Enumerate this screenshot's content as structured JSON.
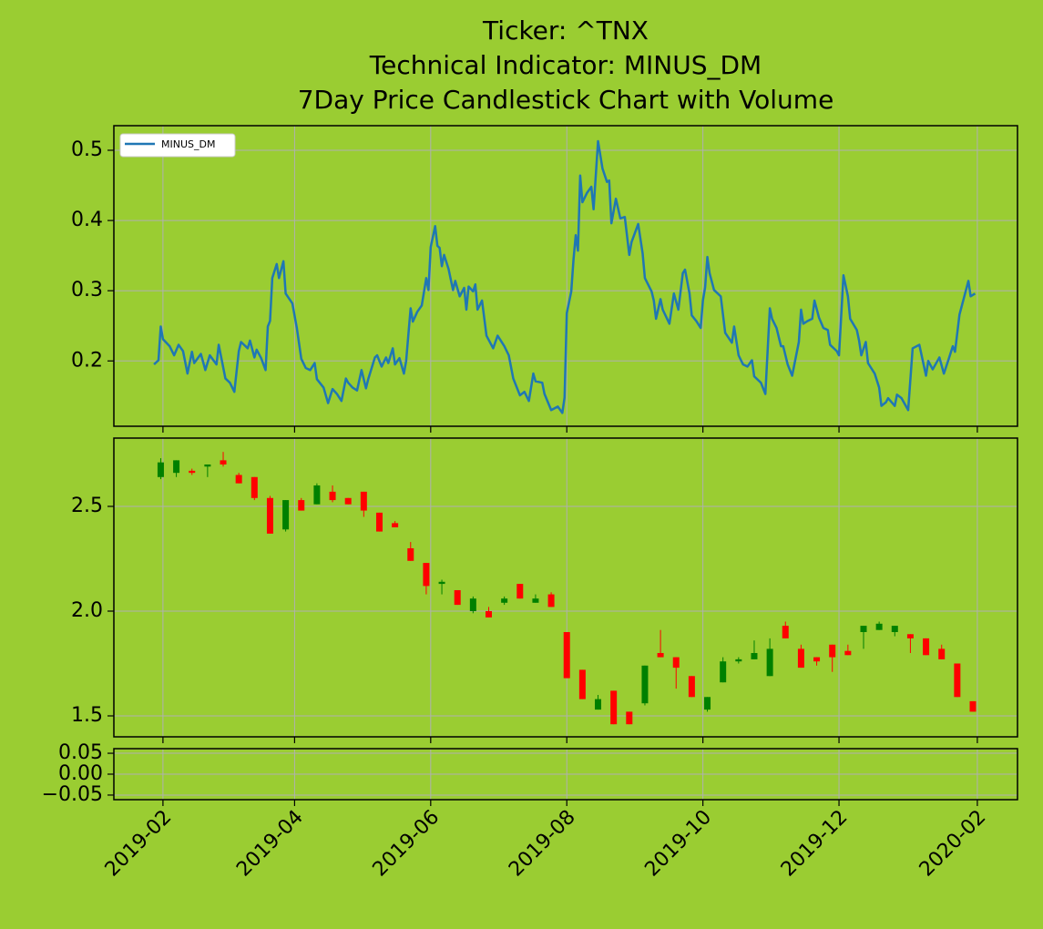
{
  "chart_data": [
    {
      "type": "line",
      "title": [
        "Ticker: ^TNX",
        "Technical Indicator: MINUS_DM",
        "7Day Price Candlestick Chart with Volume"
      ],
      "series": [
        {
          "name": "MINUS_DM",
          "color": "#1f77b4",
          "x": [
            "2019-01-28",
            "2019-01-30",
            "2019-01-31",
            "2019-02-01",
            "2019-02-04",
            "2019-02-06",
            "2019-02-08",
            "2019-02-10",
            "2019-02-12",
            "2019-02-14",
            "2019-02-15",
            "2019-02-18",
            "2019-02-20",
            "2019-02-22",
            "2019-02-25",
            "2019-02-26",
            "2019-03-01",
            "2019-03-03",
            "2019-03-05",
            "2019-03-07",
            "2019-03-08",
            "2019-03-11",
            "2019-03-12",
            "2019-03-14",
            "2019-03-15",
            "2019-03-17",
            "2019-03-19",
            "2019-03-20",
            "2019-03-21",
            "2019-03-22",
            "2019-03-24",
            "2019-03-25",
            "2019-03-27",
            "2019-03-28",
            "2019-03-31",
            "2019-04-02",
            "2019-04-04",
            "2019-04-06",
            "2019-04-08",
            "2019-04-10",
            "2019-04-11",
            "2019-04-14",
            "2019-04-16",
            "2019-04-18",
            "2019-04-20",
            "2019-04-22",
            "2019-04-24",
            "2019-04-25",
            "2019-04-27",
            "2019-04-29",
            "2019-05-01",
            "2019-05-03",
            "2019-05-04",
            "2019-05-07",
            "2019-05-08",
            "2019-05-10",
            "2019-05-12",
            "2019-05-13",
            "2019-05-15",
            "2019-05-16",
            "2019-05-18",
            "2019-05-20",
            "2019-05-21",
            "2019-05-23",
            "2019-05-24",
            "2019-05-26",
            "2019-05-28",
            "2019-05-30",
            "2019-05-31",
            "2019-06-01",
            "2019-06-02",
            "2019-06-03",
            "2019-06-04",
            "2019-06-05",
            "2019-06-06",
            "2019-06-07",
            "2019-06-09",
            "2019-06-11",
            "2019-06-12",
            "2019-06-14",
            "2019-06-16",
            "2019-06-17",
            "2019-06-18",
            "2019-06-20",
            "2019-06-21",
            "2019-06-22",
            "2019-06-24",
            "2019-06-26",
            "2019-06-29",
            "2019-07-01",
            "2019-07-04",
            "2019-07-06",
            "2019-07-08",
            "2019-07-11",
            "2019-07-13",
            "2019-07-15",
            "2019-07-17",
            "2019-07-18",
            "2019-07-21",
            "2019-07-22",
            "2019-07-25",
            "2019-07-28",
            "2019-07-30",
            "2019-07-31",
            "2019-08-01",
            "2019-08-03",
            "2019-08-04",
            "2019-08-05",
            "2019-08-06",
            "2019-08-07",
            "2019-08-08",
            "2019-08-10",
            "2019-08-12",
            "2019-08-13",
            "2019-08-15",
            "2019-08-17",
            "2019-08-19",
            "2019-08-20",
            "2019-08-21",
            "2019-08-23",
            "2019-08-25",
            "2019-08-27",
            "2019-08-29",
            "2019-08-30",
            "2019-09-02",
            "2019-09-04",
            "2019-09-05",
            "2019-09-08",
            "2019-09-09",
            "2019-09-10",
            "2019-09-12",
            "2019-09-13",
            "2019-09-16",
            "2019-09-18",
            "2019-09-20",
            "2019-09-22",
            "2019-09-23",
            "2019-09-25",
            "2019-09-26",
            "2019-09-28",
            "2019-09-30",
            "2019-10-01",
            "2019-10-02",
            "2019-10-03",
            "2019-10-04",
            "2019-10-06",
            "2019-10-09",
            "2019-10-11",
            "2019-10-14",
            "2019-10-15",
            "2019-10-17",
            "2019-10-19",
            "2019-10-21",
            "2019-10-23",
            "2019-10-24",
            "2019-10-27",
            "2019-10-29",
            "2019-10-31",
            "2019-11-01",
            "2019-11-03",
            "2019-11-05",
            "2019-11-06",
            "2019-11-08",
            "2019-11-10",
            "2019-11-13",
            "2019-11-14",
            "2019-11-15",
            "2019-11-17",
            "2019-11-19",
            "2019-11-20",
            "2019-11-22",
            "2019-11-24",
            "2019-11-26",
            "2019-11-27",
            "2019-11-30",
            "2019-12-01",
            "2019-12-03",
            "2019-12-05",
            "2019-12-06",
            "2019-12-09",
            "2019-12-10",
            "2019-12-11",
            "2019-12-13",
            "2019-12-14",
            "2019-12-17",
            "2019-12-19",
            "2019-12-20",
            "2019-12-22",
            "2019-12-23",
            "2019-12-26",
            "2019-12-27",
            "2019-12-29",
            "2020-01-01",
            "2020-01-03",
            "2020-01-06",
            "2020-01-09",
            "2020-01-10",
            "2020-01-12",
            "2020-01-15",
            "2020-01-17",
            "2020-01-19",
            "2020-01-21",
            "2020-01-22",
            "2020-01-24",
            "2020-01-28",
            "2020-01-29",
            "2020-01-31"
          ],
          "values": [
            0.195,
            0.201,
            0.249,
            0.231,
            0.221,
            0.208,
            0.223,
            0.214,
            0.182,
            0.213,
            0.197,
            0.21,
            0.187,
            0.208,
            0.195,
            0.223,
            0.175,
            0.169,
            0.156,
            0.214,
            0.227,
            0.218,
            0.229,
            0.205,
            0.216,
            0.204,
            0.187,
            0.249,
            0.257,
            0.318,
            0.338,
            0.318,
            0.342,
            0.296,
            0.282,
            0.247,
            0.203,
            0.19,
            0.187,
            0.197,
            0.174,
            0.162,
            0.14,
            0.16,
            0.153,
            0.143,
            0.175,
            0.169,
            0.162,
            0.158,
            0.187,
            0.161,
            0.174,
            0.205,
            0.208,
            0.192,
            0.205,
            0.197,
            0.218,
            0.195,
            0.204,
            0.182,
            0.2,
            0.275,
            0.256,
            0.27,
            0.279,
            0.318,
            0.301,
            0.362,
            0.377,
            0.392,
            0.364,
            0.361,
            0.335,
            0.351,
            0.331,
            0.301,
            0.314,
            0.292,
            0.304,
            0.273,
            0.306,
            0.299,
            0.309,
            0.273,
            0.286,
            0.236,
            0.218,
            0.236,
            0.221,
            0.208,
            0.175,
            0.151,
            0.156,
            0.143,
            0.182,
            0.171,
            0.169,
            0.153,
            0.13,
            0.135,
            0.126,
            0.148,
            0.268,
            0.299,
            0.344,
            0.379,
            0.357,
            0.464,
            0.426,
            0.439,
            0.448,
            0.416,
            0.513,
            0.474,
            0.455,
            0.457,
            0.396,
            0.431,
            0.403,
            0.405,
            0.351,
            0.369,
            0.395,
            0.353,
            0.318,
            0.299,
            0.286,
            0.26,
            0.288,
            0.273,
            0.253,
            0.296,
            0.273,
            0.325,
            0.33,
            0.296,
            0.265,
            0.257,
            0.247,
            0.286,
            0.305,
            0.348,
            0.325,
            0.301,
            0.292,
            0.24,
            0.226,
            0.249,
            0.208,
            0.195,
            0.192,
            0.201,
            0.178,
            0.169,
            0.153,
            0.275,
            0.26,
            0.247,
            0.221,
            0.221,
            0.195,
            0.179,
            0.227,
            0.273,
            0.253,
            0.257,
            0.26,
            0.286,
            0.262,
            0.247,
            0.244,
            0.223,
            0.214,
            0.208,
            0.322,
            0.292,
            0.26,
            0.244,
            0.229,
            0.208,
            0.227,
            0.197,
            0.182,
            0.162,
            0.136,
            0.141,
            0.147,
            0.136,
            0.152,
            0.147,
            0.13,
            0.218,
            0.223,
            0.179,
            0.2,
            0.188,
            0.205,
            0.182,
            0.201,
            0.221,
            0.213,
            0.266,
            0.314,
            0.292,
            0.296
          ]
        }
      ],
      "ylim": [
        0.107,
        0.535
      ],
      "yticks": [
        0.2,
        0.3,
        0.4,
        0.5
      ],
      "grid": true,
      "legend": "upper left"
    },
    {
      "type": "candlestick",
      "up_color": "#008000",
      "down_color": "#ff0000",
      "x": [
        "2019-01-31",
        "2019-02-07",
        "2019-02-14",
        "2019-02-21",
        "2019-02-28",
        "2019-03-07",
        "2019-03-14",
        "2019-03-21",
        "2019-03-28",
        "2019-04-04",
        "2019-04-11",
        "2019-04-18",
        "2019-04-25",
        "2019-05-02",
        "2019-05-09",
        "2019-05-16",
        "2019-05-23",
        "2019-05-30",
        "2019-06-06",
        "2019-06-13",
        "2019-06-20",
        "2019-06-27",
        "2019-07-04",
        "2019-07-11",
        "2019-07-18",
        "2019-07-25",
        "2019-08-01",
        "2019-08-08",
        "2019-08-15",
        "2019-08-22",
        "2019-08-29",
        "2019-09-05",
        "2019-09-12",
        "2019-09-19",
        "2019-09-26",
        "2019-10-03",
        "2019-10-10",
        "2019-10-17",
        "2019-10-24",
        "2019-10-31",
        "2019-11-07",
        "2019-11-14",
        "2019-11-21",
        "2019-11-28",
        "2019-12-05",
        "2019-12-12",
        "2019-12-19",
        "2019-12-26",
        "2020-01-02",
        "2020-01-09",
        "2020-01-16",
        "2020-01-23",
        "2020-01-30"
      ],
      "open": [
        2.64,
        2.66,
        2.67,
        2.69,
        2.72,
        2.65,
        2.64,
        2.54,
        2.39,
        2.53,
        2.51,
        2.57,
        2.54,
        2.57,
        2.47,
        2.42,
        2.3,
        2.23,
        2.13,
        2.1,
        2.0,
        2.0,
        2.04,
        2.13,
        2.04,
        2.08,
        1.9,
        1.72,
        1.53,
        1.62,
        1.52,
        1.56,
        1.8,
        1.78,
        1.69,
        1.53,
        1.66,
        1.76,
        1.77,
        1.69,
        1.93,
        1.82,
        1.78,
        1.84,
        1.81,
        1.9,
        1.91,
        1.9,
        1.89,
        1.87,
        1.82,
        1.75,
        1.57
      ],
      "high": [
        2.73,
        2.72,
        2.68,
        2.7,
        2.76,
        2.66,
        2.64,
        2.55,
        2.53,
        2.54,
        2.61,
        2.6,
        2.54,
        2.57,
        2.47,
        2.43,
        2.33,
        2.23,
        2.15,
        2.1,
        2.07,
        2.02,
        2.07,
        2.13,
        2.08,
        2.09,
        1.9,
        1.72,
        1.6,
        1.62,
        1.52,
        1.74,
        1.91,
        1.78,
        1.69,
        1.59,
        1.78,
        1.78,
        1.86,
        1.87,
        1.95,
        1.84,
        1.78,
        1.84,
        1.84,
        1.93,
        1.95,
        1.93,
        1.89,
        1.87,
        1.84,
        1.75,
        1.57
      ],
      "low": [
        2.63,
        2.64,
        2.65,
        2.64,
        2.69,
        2.61,
        2.53,
        2.37,
        2.38,
        2.48,
        2.51,
        2.52,
        2.51,
        2.45,
        2.38,
        2.4,
        2.24,
        2.08,
        2.08,
        2.03,
        1.99,
        1.97,
        2.03,
        2.06,
        2.04,
        2.02,
        1.68,
        1.58,
        1.53,
        1.46,
        1.46,
        1.55,
        1.78,
        1.63,
        1.59,
        1.52,
        1.66,
        1.75,
        1.77,
        1.69,
        1.87,
        1.73,
        1.74,
        1.71,
        1.79,
        1.82,
        1.91,
        1.88,
        1.8,
        1.79,
        1.77,
        1.59,
        1.52
      ],
      "close": [
        2.71,
        2.72,
        2.66,
        2.7,
        2.7,
        2.61,
        2.54,
        2.37,
        2.53,
        2.48,
        2.6,
        2.53,
        2.51,
        2.48,
        2.38,
        2.4,
        2.24,
        2.12,
        2.14,
        2.03,
        2.06,
        1.97,
        2.06,
        2.06,
        2.06,
        2.02,
        1.68,
        1.58,
        1.58,
        1.46,
        1.46,
        1.74,
        1.78,
        1.73,
        1.59,
        1.59,
        1.76,
        1.77,
        1.8,
        1.82,
        1.87,
        1.73,
        1.76,
        1.78,
        1.79,
        1.93,
        1.94,
        1.93,
        1.87,
        1.79,
        1.77,
        1.59,
        1.52
      ],
      "ylim": [
        1.4,
        2.826
      ],
      "yticks": [
        1.5,
        {
          "value": 2,
          "label": "2.0"
        },
        2.5
      ],
      "grid": true
    },
    {
      "type": "bar",
      "ylim": [
        -0.061,
        0.061
      ],
      "yticks": [
        {
          "value": -0.05,
          "label": "−0.05"
        },
        {
          "value": 0,
          "label": "0.00"
        },
        0.05
      ],
      "grid": true,
      "xlim": [
        "2019-01-10",
        "2020-02-19"
      ],
      "xticks": [
        {
          "value": "2019-02-01",
          "label": "2019-02"
        },
        {
          "value": "2019-04-01",
          "label": "2019-04"
        },
        {
          "value": "2019-06-01",
          "label": "2019-06"
        },
        {
          "value": "2019-08-01",
          "label": "2019-08"
        },
        {
          "value": "2019-10-01",
          "label": "2019-10"
        },
        {
          "value": "2019-12-01",
          "label": "2019-12"
        },
        {
          "value": "2020-02-01",
          "label": "2020-02"
        }
      ]
    }
  ]
}
